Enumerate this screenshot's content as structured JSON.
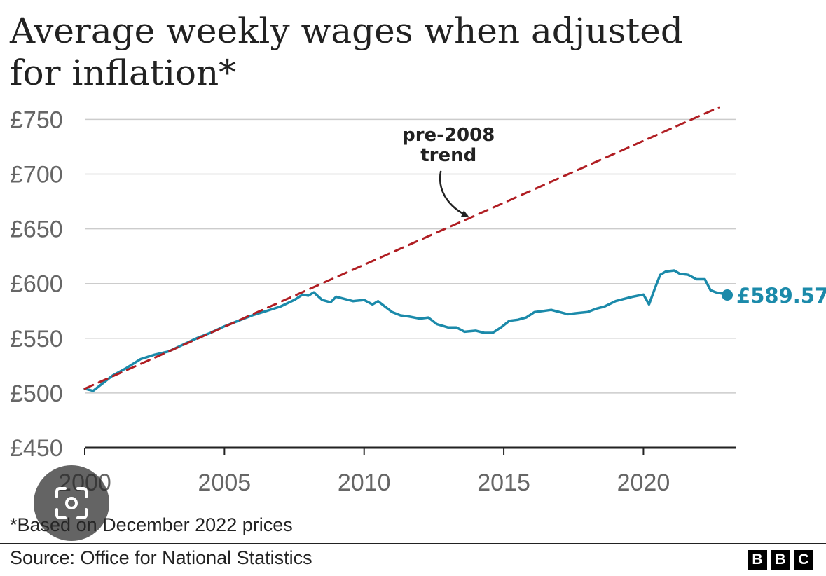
{
  "title": "Average weekly wages when adjusted for inflation*",
  "footnote": "*Based on December 2022 prices",
  "source": "Source: Office for National Statistics",
  "brand": {
    "letters": [
      "B",
      "B",
      "C"
    ]
  },
  "overlay": {
    "icon": "google-lens-icon"
  },
  "colors": {
    "wages": "#1b8aaa",
    "trend": "#b01e23",
    "grid": "#cccccc",
    "axis": "#222222"
  },
  "chart_data": {
    "type": "line",
    "title": "Average weekly wages when adjusted for inflation*",
    "xlabel": "",
    "ylabel": "",
    "xlim": [
      2000,
      2023.3
    ],
    "ylim": [
      450,
      765
    ],
    "yticks": [
      450,
      500,
      550,
      600,
      650,
      700,
      750
    ],
    "ytick_labels": [
      "£450",
      "£500",
      "£550",
      "£600",
      "£650",
      "£700",
      "£750"
    ],
    "xticks": [
      2000,
      2005,
      2010,
      2015,
      2020
    ],
    "xtick_labels": [
      "2000",
      "2005",
      "2010",
      "2015",
      "2020"
    ],
    "grid": true,
    "series": [
      {
        "key": "wages",
        "style": "solid",
        "x": [
          2000.0,
          2000.3,
          2000.6,
          2001.0,
          2001.5,
          2002.0,
          2002.5,
          2003.0,
          2003.5,
          2004.0,
          2004.5,
          2005.0,
          2005.5,
          2006.0,
          2006.5,
          2007.0,
          2007.5,
          2007.8,
          2008.0,
          2008.2,
          2008.5,
          2008.8,
          2009.0,
          2009.3,
          2009.6,
          2010.0,
          2010.3,
          2010.5,
          2010.7,
          2011.0,
          2011.3,
          2011.6,
          2012.0,
          2012.3,
          2012.6,
          2013.0,
          2013.3,
          2013.6,
          2014.0,
          2014.3,
          2014.6,
          2014.9,
          2015.2,
          2015.5,
          2015.8,
          2016.1,
          2016.4,
          2016.7,
          2017.0,
          2017.3,
          2017.6,
          2018.0,
          2018.3,
          2018.6,
          2019.0,
          2019.3,
          2019.6,
          2020.0,
          2020.2,
          2020.4,
          2020.6,
          2020.8,
          2021.1,
          2021.3,
          2021.6,
          2021.9,
          2022.2,
          2022.4,
          2022.6,
          2022.8,
          2023.0
        ],
        "y": [
          504,
          502,
          508,
          516,
          523,
          531,
          535,
          538,
          544,
          550,
          555,
          561,
          566,
          571,
          575,
          579,
          585,
          590,
          589,
          592,
          585,
          583,
          588,
          586,
          584,
          585,
          581,
          584,
          580,
          574,
          571,
          570,
          568,
          569,
          563,
          560,
          560,
          556,
          557,
          555,
          555,
          560,
          566,
          567,
          569,
          574,
          575,
          576,
          574,
          572,
          573,
          574,
          577,
          579,
          584,
          586,
          588,
          590,
          581,
          595,
          608,
          611,
          612,
          609,
          608,
          604,
          604,
          594,
          592,
          591,
          589.57
        ]
      },
      {
        "key": "trend",
        "name": "pre-2008 trend",
        "style": "dashed",
        "x": [
          2000,
          2022.7
        ],
        "y": [
          504,
          761
        ]
      }
    ],
    "annotations": [
      {
        "text_lines": [
          "pre-2008",
          "trend"
        ],
        "points_to": {
          "x": 2013.8,
          "y": 660
        }
      }
    ],
    "end_label": {
      "text": "£589.57",
      "x": 2023.0,
      "y": 589.57
    }
  }
}
